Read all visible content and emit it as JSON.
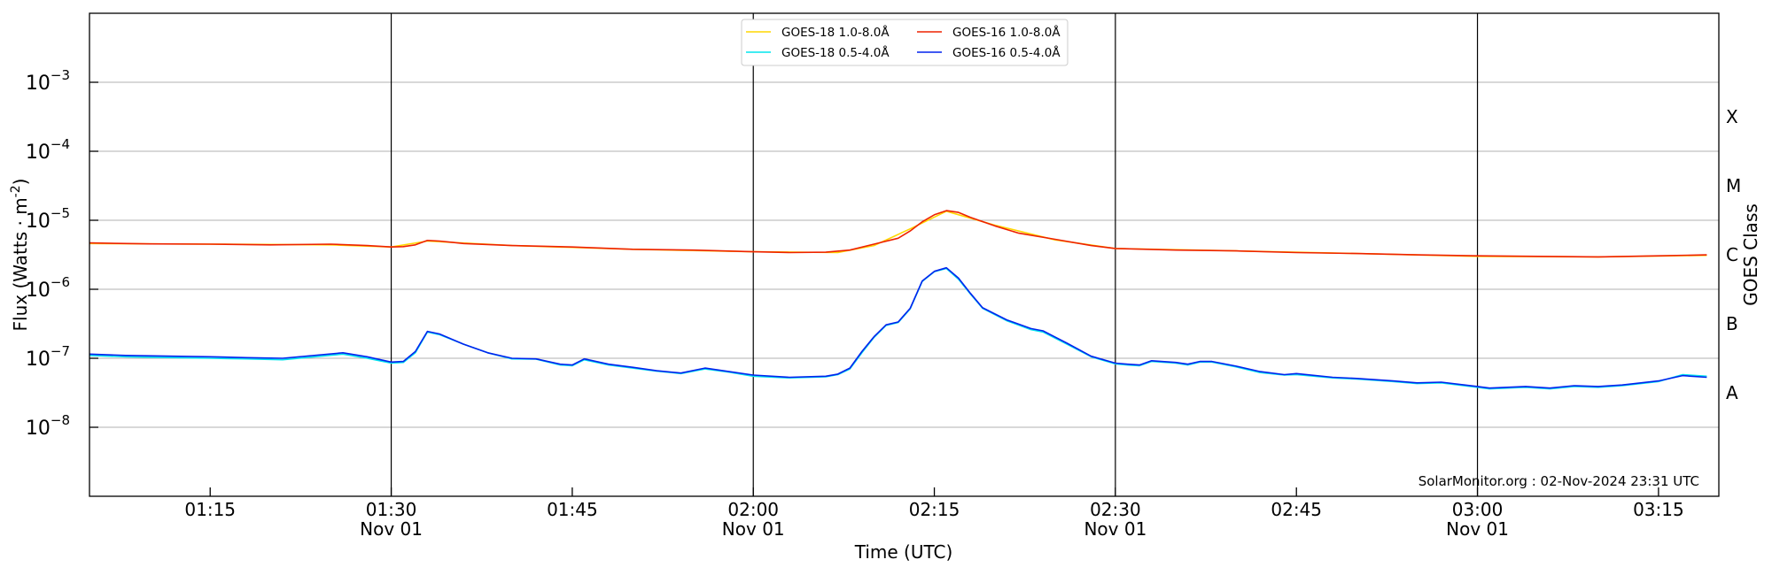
{
  "chart_data": {
    "type": "line",
    "x_axis": {
      "label": "Time (UTC)",
      "range": [
        "01:05",
        "03:20"
      ],
      "ticks": [
        {
          "time": "01:15",
          "label": "01:15",
          "date": ""
        },
        {
          "time": "01:30",
          "label": "01:30",
          "date": "Nov 01"
        },
        {
          "time": "01:45",
          "label": "01:45",
          "date": ""
        },
        {
          "time": "02:00",
          "label": "02:00",
          "date": "Nov 01"
        },
        {
          "time": "02:15",
          "label": "02:15",
          "date": ""
        },
        {
          "time": "02:30",
          "label": "02:30",
          "date": "Nov 01"
        },
        {
          "time": "02:45",
          "label": "02:45",
          "date": ""
        },
        {
          "time": "03:00",
          "label": "03:00",
          "date": "Nov 01"
        },
        {
          "time": "03:15",
          "label": "03:15",
          "date": ""
        }
      ],
      "vertical_lines": [
        "01:30",
        "02:00",
        "02:30",
        "03:00"
      ]
    },
    "y_axis": {
      "label": "Flux (Watts · m",
      "label_superscript": "-2",
      "label_close": ")",
      "scale": "log",
      "range": [
        1e-09,
        0.01
      ],
      "ticks": [
        {
          "value": 1e-08,
          "base": "10",
          "exp": "−8"
        },
        {
          "value": 1e-07,
          "base": "10",
          "exp": "−7"
        },
        {
          "value": 1e-06,
          "base": "10",
          "exp": "−6"
        },
        {
          "value": 1e-05,
          "base": "10",
          "exp": "−5"
        },
        {
          "value": 0.0001,
          "base": "10",
          "exp": "−4"
        },
        {
          "value": 0.001,
          "base": "10",
          "exp": "−3"
        }
      ],
      "grid": true
    },
    "right_axis": {
      "label": "GOES Class",
      "classes": [
        {
          "label": "A",
          "value": 3.16e-08
        },
        {
          "label": "B",
          "value": 3.16e-07
        },
        {
          "label": "C",
          "value": 3.16e-06
        },
        {
          "label": "M",
          "value": 3.16e-05
        },
        {
          "label": "X",
          "value": 0.000316
        }
      ]
    },
    "legend": {
      "placement": "top-center",
      "entries": [
        {
          "name": "GOES-18 1.0-8.0Å",
          "color": "#ffd700"
        },
        {
          "name": "GOES-18 0.5-4.0Å",
          "color": "#00e5ee"
        },
        {
          "name": "GOES-16 1.0-8.0Å",
          "color": "#ee2200"
        },
        {
          "name": "GOES-16 0.5-4.0Å",
          "color": "#0022ee"
        }
      ]
    },
    "annotation": "SolarMonitor.org : 02-Nov-2024 23:31 UTC",
    "series": [
      {
        "name": "GOES-18 1.0-8.0Å",
        "color": "#ffd700",
        "points": [
          [
            "01:05",
            4.6e-06
          ],
          [
            "01:15",
            4.5e-06
          ],
          [
            "01:25",
            4.4e-06
          ],
          [
            "01:30",
            4.1e-06
          ],
          [
            "01:33",
            5e-06
          ],
          [
            "01:40",
            4.3e-06
          ],
          [
            "01:50",
            3.8e-06
          ],
          [
            "02:00",
            3.5e-06
          ],
          [
            "02:07",
            3.4e-06
          ],
          [
            "02:10",
            4.3e-06
          ],
          [
            "02:13",
            7.5e-06
          ],
          [
            "02:16",
            1.35e-05
          ],
          [
            "02:20",
            8.5e-06
          ],
          [
            "02:25",
            5.2e-06
          ],
          [
            "02:30",
            3.9e-06
          ],
          [
            "02:40",
            3.6e-06
          ],
          [
            "02:50",
            3.3e-06
          ],
          [
            "03:00",
            3e-06
          ],
          [
            "03:10",
            2.95e-06
          ],
          [
            "03:19",
            3.1e-06
          ]
        ]
      },
      {
        "name": "GOES-18 0.5-4.0Å",
        "color": "#00e5ee",
        "points": [
          [
            "01:05",
            1.1e-07
          ],
          [
            "01:08",
            1.05e-07
          ],
          [
            "01:12",
            1.02e-07
          ],
          [
            "01:15",
            1e-07
          ],
          [
            "01:18",
            9.8e-08
          ],
          [
            "01:21",
            9.5e-08
          ],
          [
            "01:26",
            1.15e-07
          ],
          [
            "01:28",
            1e-07
          ],
          [
            "01:30",
            8.5e-08
          ],
          [
            "01:31",
            8.7e-08
          ],
          [
            "01:32",
            1.2e-07
          ],
          [
            "01:33",
            2.4e-07
          ],
          [
            "01:34",
            2.2e-07
          ],
          [
            "01:36",
            1.6e-07
          ],
          [
            "01:38",
            1.2e-07
          ],
          [
            "01:40",
            9.8e-08
          ],
          [
            "01:42",
            9.7e-08
          ],
          [
            "01:44",
            8e-08
          ],
          [
            "01:45",
            7.8e-08
          ],
          [
            "01:46",
            9.5e-08
          ],
          [
            "01:48",
            8e-08
          ],
          [
            "01:50",
            7.2e-08
          ],
          [
            "01:52",
            6.5e-08
          ],
          [
            "01:54",
            6e-08
          ],
          [
            "01:56",
            7e-08
          ],
          [
            "01:58",
            6.3e-08
          ],
          [
            "02:00",
            5.5e-08
          ],
          [
            "02:03",
            5.2e-08
          ],
          [
            "02:06",
            5.4e-08
          ],
          [
            "02:07",
            5.8e-08
          ],
          [
            "02:08",
            7e-08
          ],
          [
            "02:09",
            1.2e-07
          ],
          [
            "02:10",
            2e-07
          ],
          [
            "02:11",
            3e-07
          ],
          [
            "02:12",
            3.3e-07
          ],
          [
            "02:13",
            5.2e-07
          ],
          [
            "02:14",
            1.3e-06
          ],
          [
            "02:15",
            1.8e-06
          ],
          [
            "02:16",
            2e-06
          ],
          [
            "02:17",
            1.4e-06
          ],
          [
            "02:18",
            8.5e-07
          ],
          [
            "02:19",
            5.3e-07
          ],
          [
            "02:21",
            3.5e-07
          ],
          [
            "02:23",
            2.6e-07
          ],
          [
            "02:24",
            2.4e-07
          ],
          [
            "02:26",
            1.6e-07
          ],
          [
            "02:28",
            1.05e-07
          ],
          [
            "02:30",
            8.3e-08
          ],
          [
            "02:31",
            8e-08
          ],
          [
            "02:32",
            7.8e-08
          ],
          [
            "02:33",
            9e-08
          ],
          [
            "02:35",
            8.5e-08
          ],
          [
            "02:36",
            8e-08
          ],
          [
            "02:37",
            8.8e-08
          ],
          [
            "02:38",
            8.8e-08
          ],
          [
            "02:40",
            7.5e-08
          ],
          [
            "02:42",
            6.2e-08
          ],
          [
            "02:44",
            5.7e-08
          ],
          [
            "02:45",
            5.8e-08
          ],
          [
            "02:48",
            5.2e-08
          ],
          [
            "02:50",
            5e-08
          ],
          [
            "02:53",
            4.6e-08
          ],
          [
            "02:55",
            4.3e-08
          ],
          [
            "02:57",
            4.4e-08
          ],
          [
            "03:00",
            3.8e-08
          ],
          [
            "03:01",
            3.6e-08
          ],
          [
            "03:04",
            3.8e-08
          ],
          [
            "03:06",
            3.6e-08
          ],
          [
            "03:08",
            3.9e-08
          ],
          [
            "03:10",
            3.8e-08
          ],
          [
            "03:12",
            4e-08
          ],
          [
            "03:15",
            4.6e-08
          ],
          [
            "03:17",
            5.8e-08
          ],
          [
            "03:19",
            5.5e-08
          ]
        ]
      },
      {
        "name": "GOES-16 1.0-8.0Å",
        "color": "#ee2200",
        "points": [
          [
            "01:05",
            4.7e-06
          ],
          [
            "01:10",
            4.55e-06
          ],
          [
            "01:15",
            4.5e-06
          ],
          [
            "01:20",
            4.4e-06
          ],
          [
            "01:25",
            4.5e-06
          ],
          [
            "01:28",
            4.3e-06
          ],
          [
            "01:30",
            4.1e-06
          ],
          [
            "01:31",
            4.15e-06
          ],
          [
            "01:32",
            4.4e-06
          ],
          [
            "01:33",
            5.1e-06
          ],
          [
            "01:34",
            5e-06
          ],
          [
            "01:36",
            4.6e-06
          ],
          [
            "01:40",
            4.3e-06
          ],
          [
            "01:45",
            4.1e-06
          ],
          [
            "01:50",
            3.8e-06
          ],
          [
            "01:55",
            3.7e-06
          ],
          [
            "02:00",
            3.5e-06
          ],
          [
            "02:03",
            3.4e-06
          ],
          [
            "02:06",
            3.45e-06
          ],
          [
            "02:08",
            3.7e-06
          ],
          [
            "02:10",
            4.5e-06
          ],
          [
            "02:12",
            5.5e-06
          ],
          [
            "02:13",
            7e-06
          ],
          [
            "02:14",
            9.5e-06
          ],
          [
            "02:15",
            1.2e-05
          ],
          [
            "02:16",
            1.38e-05
          ],
          [
            "02:17",
            1.3e-05
          ],
          [
            "02:18",
            1.1e-05
          ],
          [
            "02:20",
            8.3e-06
          ],
          [
            "02:22",
            6.5e-06
          ],
          [
            "02:25",
            5.3e-06
          ],
          [
            "02:28",
            4.3e-06
          ],
          [
            "02:30",
            3.9e-06
          ],
          [
            "02:35",
            3.7e-06
          ],
          [
            "02:40",
            3.6e-06
          ],
          [
            "02:45",
            3.4e-06
          ],
          [
            "02:50",
            3.3e-06
          ],
          [
            "02:55",
            3.15e-06
          ],
          [
            "03:00",
            3.05e-06
          ],
          [
            "03:05",
            3e-06
          ],
          [
            "03:10",
            2.95e-06
          ],
          [
            "03:15",
            3.05e-06
          ],
          [
            "03:19",
            3.15e-06
          ]
        ]
      },
      {
        "name": "GOES-16 0.5-4.0Å",
        "color": "#0022ee",
        "points": [
          [
            "01:05",
            1.15e-07
          ],
          [
            "01:08",
            1.1e-07
          ],
          [
            "01:12",
            1.07e-07
          ],
          [
            "01:15",
            1.05e-07
          ],
          [
            "01:18",
            1.02e-07
          ],
          [
            "01:21",
            1e-07
          ],
          [
            "01:26",
            1.2e-07
          ],
          [
            "01:28",
            1.05e-07
          ],
          [
            "01:30",
            8.8e-08
          ],
          [
            "01:31",
            9e-08
          ],
          [
            "01:32",
            1.25e-07
          ],
          [
            "01:33",
            2.45e-07
          ],
          [
            "01:34",
            2.25e-07
          ],
          [
            "01:36",
            1.6e-07
          ],
          [
            "01:38",
            1.2e-07
          ],
          [
            "01:40",
            1e-07
          ],
          [
            "01:42",
            9.8e-08
          ],
          [
            "01:44",
            8.2e-08
          ],
          [
            "01:45",
            8e-08
          ],
          [
            "01:46",
            9.8e-08
          ],
          [
            "01:48",
            8.2e-08
          ],
          [
            "01:50",
            7.4e-08
          ],
          [
            "01:52",
            6.6e-08
          ],
          [
            "01:54",
            6.1e-08
          ],
          [
            "01:56",
            7.2e-08
          ],
          [
            "01:58",
            6.4e-08
          ],
          [
            "02:00",
            5.7e-08
          ],
          [
            "02:03",
            5.3e-08
          ],
          [
            "02:06",
            5.5e-08
          ],
          [
            "02:07",
            5.9e-08
          ],
          [
            "02:08",
            7.2e-08
          ],
          [
            "02:09",
            1.25e-07
          ],
          [
            "02:10",
            2.05e-07
          ],
          [
            "02:11",
            3.05e-07
          ],
          [
            "02:12",
            3.35e-07
          ],
          [
            "02:13",
            5.3e-07
          ],
          [
            "02:14",
            1.32e-06
          ],
          [
            "02:15",
            1.82e-06
          ],
          [
            "02:16",
            2.05e-06
          ],
          [
            "02:17",
            1.45e-06
          ],
          [
            "02:18",
            8.7e-07
          ],
          [
            "02:19",
            5.4e-07
          ],
          [
            "02:21",
            3.6e-07
          ],
          [
            "02:23",
            2.7e-07
          ],
          [
            "02:24",
            2.5e-07
          ],
          [
            "02:26",
            1.65e-07
          ],
          [
            "02:28",
            1.07e-07
          ],
          [
            "02:30",
            8.5e-08
          ],
          [
            "02:31",
            8.2e-08
          ],
          [
            "02:32",
            8e-08
          ],
          [
            "02:33",
            9.2e-08
          ],
          [
            "02:35",
            8.7e-08
          ],
          [
            "02:36",
            8.2e-08
          ],
          [
            "02:37",
            9e-08
          ],
          [
            "02:38",
            9e-08
          ],
          [
            "02:40",
            7.7e-08
          ],
          [
            "02:42",
            6.4e-08
          ],
          [
            "02:44",
            5.8e-08
          ],
          [
            "02:45",
            6e-08
          ],
          [
            "02:48",
            5.3e-08
          ],
          [
            "02:50",
            5.1e-08
          ],
          [
            "02:53",
            4.7e-08
          ],
          [
            "02:55",
            4.4e-08
          ],
          [
            "02:57",
            4.5e-08
          ],
          [
            "03:00",
            3.9e-08
          ],
          [
            "03:01",
            3.7e-08
          ],
          [
            "03:04",
            3.9e-08
          ],
          [
            "03:06",
            3.7e-08
          ],
          [
            "03:08",
            4e-08
          ],
          [
            "03:10",
            3.9e-08
          ],
          [
            "03:12",
            4.1e-08
          ],
          [
            "03:15",
            4.7e-08
          ],
          [
            "03:17",
            5.6e-08
          ],
          [
            "03:19",
            5.3e-08
          ]
        ]
      }
    ]
  }
}
